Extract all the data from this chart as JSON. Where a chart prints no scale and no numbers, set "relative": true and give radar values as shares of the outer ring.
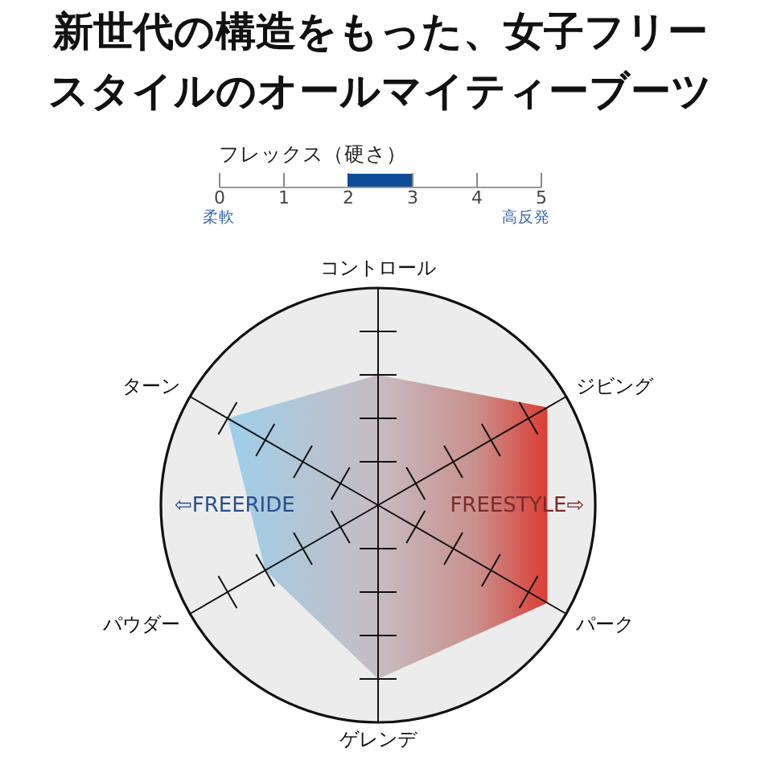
{
  "chart_data": [
    {
      "type": "other",
      "title": "新世代の構造をもった、女子フリースタイルのオールマイティーブーツ"
    },
    {
      "type": "bar",
      "title": "フレックス（硬さ）",
      "orientation": "horizontal",
      "categories": [
        null
      ],
      "base": [
        2
      ],
      "values": [
        1
      ],
      "color": "#0e4c96",
      "xlim": [
        0,
        5
      ],
      "xticks": [
        0,
        1,
        2,
        3,
        4,
        5
      ],
      "annotations": [
        "柔軟",
        "高反発"
      ]
    },
    {
      "type": "radar",
      "categories": [
        "コントロール",
        "ジビング",
        "パーク",
        "ゲレンデ",
        "パウダー",
        "ターン"
      ],
      "relative": true,
      "series": [
        {
          "color": "#c98f8b",
          "values": [
            0.6,
            0.9,
            0.9,
            0.8,
            0.6,
            0.8
          ]
        }
      ],
      "grid": true,
      "annotations": [
        "⇦FREERIDE",
        "FREESTYLE⇨"
      ]
    }
  ]
}
